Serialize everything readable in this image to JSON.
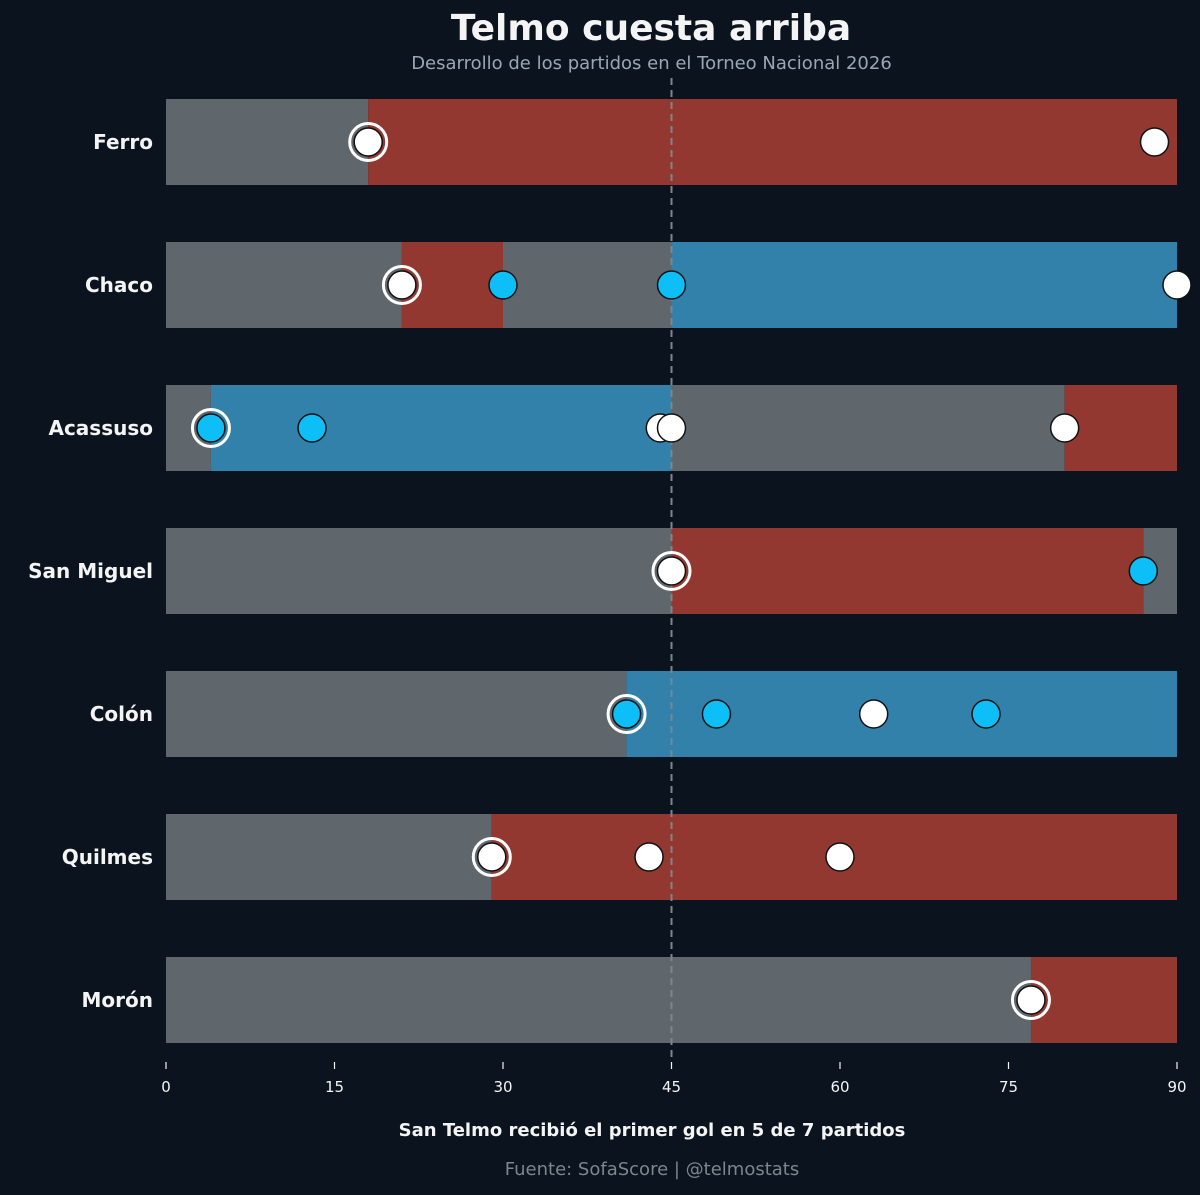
{
  "chart_data": {
    "type": "bar",
    "title": "Telmo cuesta arriba",
    "subtitle": "Desarrollo de los partidos en el Torneo Nacional 2026",
    "xlabel": "San Telmo recibió el primer gol en 5 de 7 partidos",
    "source": "Fuente: SofaScore | @telmostats",
    "xlim": [
      0,
      90
    ],
    "xticks": [
      0,
      15,
      30,
      45,
      60,
      75,
      90
    ],
    "halftime_line": 45,
    "grid": false,
    "colors": {
      "background": "#0b141e",
      "draw": "#5f666c",
      "losing": "#933830",
      "winning": "#3281aa",
      "goal_for": "#0ebff7",
      "goal_against": "#ffffff",
      "text": "#f4f4f4"
    },
    "matches": [
      {
        "opponent": "Ferro",
        "segments": [
          [
            0,
            18,
            "draw"
          ],
          [
            18,
            90,
            "losing"
          ]
        ],
        "goals": [
          {
            "minute": 18,
            "team": "against",
            "first": true
          },
          {
            "minute": 88,
            "team": "against"
          }
        ]
      },
      {
        "opponent": "Chaco",
        "segments": [
          [
            0,
            21,
            "draw"
          ],
          [
            21,
            30,
            "losing"
          ],
          [
            30,
            45,
            "draw"
          ],
          [
            45,
            90,
            "winning"
          ]
        ],
        "goals": [
          {
            "minute": 21,
            "team": "against",
            "first": true
          },
          {
            "minute": 30,
            "team": "for"
          },
          {
            "minute": 45,
            "team": "for"
          },
          {
            "minute": 90,
            "team": "against"
          }
        ]
      },
      {
        "opponent": "Acassuso",
        "segments": [
          [
            0,
            4,
            "draw"
          ],
          [
            4,
            45,
            "winning"
          ],
          [
            45,
            80,
            "draw"
          ],
          [
            80,
            90,
            "losing"
          ]
        ],
        "goals": [
          {
            "minute": 4,
            "team": "for",
            "first": true
          },
          {
            "minute": 13,
            "team": "for"
          },
          {
            "minute": 44,
            "team": "against"
          },
          {
            "minute": 45,
            "team": "against"
          },
          {
            "minute": 80,
            "team": "against"
          }
        ]
      },
      {
        "opponent": "San Miguel",
        "segments": [
          [
            0,
            45,
            "draw"
          ],
          [
            45,
            87,
            "losing"
          ],
          [
            87,
            90,
            "draw"
          ]
        ],
        "goals": [
          {
            "minute": 45,
            "team": "against",
            "first": true
          },
          {
            "minute": 87,
            "team": "for"
          }
        ]
      },
      {
        "opponent": "Colón",
        "segments": [
          [
            0,
            41,
            "draw"
          ],
          [
            41,
            90,
            "winning"
          ]
        ],
        "goals": [
          {
            "minute": 41,
            "team": "for",
            "first": true
          },
          {
            "minute": 49,
            "team": "for"
          },
          {
            "minute": 63,
            "team": "against"
          },
          {
            "minute": 73,
            "team": "for"
          }
        ]
      },
      {
        "opponent": "Quilmes",
        "segments": [
          [
            0,
            29,
            "draw"
          ],
          [
            29,
            90,
            "losing"
          ]
        ],
        "goals": [
          {
            "minute": 29,
            "team": "against",
            "first": true
          },
          {
            "minute": 43,
            "team": "against"
          },
          {
            "minute": 60,
            "team": "against"
          }
        ]
      },
      {
        "opponent": "Morón",
        "segments": [
          [
            0,
            77,
            "draw"
          ],
          [
            77,
            90,
            "losing"
          ]
        ],
        "goals": [
          {
            "minute": 77,
            "team": "against",
            "first": true
          }
        ]
      }
    ]
  }
}
